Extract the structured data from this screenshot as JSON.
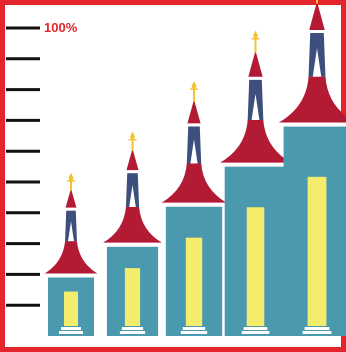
{
  "chart_data": {
    "type": "bar",
    "title": "",
    "xlabel": "",
    "ylabel": "",
    "top_tick_label": "100%",
    "ylim": [
      0,
      100
    ],
    "tick_count": 10,
    "categories": [
      "",
      "",
      "",
      "",
      ""
    ],
    "values": [
      19,
      29,
      42,
      55,
      68
    ],
    "grid": false,
    "legend": "none",
    "colors": {
      "frame": "#e3262b",
      "body": "#4a99ae",
      "roof": "#b31b34",
      "spire_window": "#3d4f7c",
      "door": "#f4ec6d",
      "finial": "#f2c232",
      "white": "#ffffff",
      "tick": "#111111",
      "label": "#e3262b"
    }
  }
}
